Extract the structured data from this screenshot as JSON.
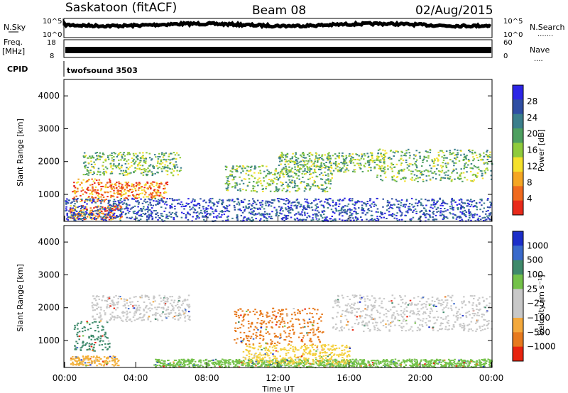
{
  "header": {
    "station": "Saskatoon (fitACF)",
    "beam": "Beam 08",
    "date": "02/Aug/2015"
  },
  "panels": {
    "nsky": {
      "left_label": "N.Sky",
      "left_ticks": [
        "10^5",
        "10^0"
      ],
      "right_ticks": [
        "10^5",
        "10^0"
      ],
      "right_label": "N.Search",
      "right_label_line": "......."
    },
    "freq": {
      "left_label": "Freq.",
      "left_unit": "[MHz]",
      "left_ticks": [
        "18",
        "8"
      ],
      "right_ticks": [
        "60",
        "0"
      ],
      "right_label": "Nave",
      "right_label_line": "...."
    },
    "cpid": {
      "label": "CPID",
      "program": "twofsound 3503"
    }
  },
  "colors": {
    "power_scale": [
      "#2c25e6",
      "#2f4ea3",
      "#3b7f8c",
      "#4ea060",
      "#8fcb3c",
      "#f5e12c",
      "#f5a623",
      "#f06a1e",
      "#e82a1a"
    ],
    "velocity_scale": [
      "#1c2ec9",
      "#3a6acb",
      "#3f8a6b",
      "#74c24a",
      "#c8c8c8",
      "#c8c8c8",
      "#f4a93c",
      "#e77a1e",
      "#e8240f"
    ]
  },
  "chart_data": [
    {
      "type": "heatmap",
      "name_key": "power",
      "ylabel": "Slant Range [km]",
      "yticks": [
        "4000",
        "3000",
        "2000",
        "1000"
      ],
      "ylim": [
        180,
        4500
      ],
      "xlim_hours": [
        0,
        24
      ],
      "colorbar_label": "Power [dB]",
      "colorbar_ticks": [
        "28",
        "24",
        "20",
        "16",
        "12",
        "8",
        "4"
      ],
      "colorbar_range": [
        0,
        32
      ],
      "echo_bands": [
        {
          "t0": 0.2,
          "t1": 3.2,
          "r0": 250,
          "r1": 700,
          "level": "high"
        },
        {
          "t0": 0.4,
          "t1": 2.6,
          "r0": 800,
          "r1": 1500,
          "level": "high"
        },
        {
          "t0": 2.5,
          "t1": 5.8,
          "r0": 900,
          "r1": 1400,
          "level": "high"
        },
        {
          "t0": 1.0,
          "t1": 6.5,
          "r0": 1600,
          "r1": 2300,
          "level": "mid"
        },
        {
          "t0": 9.0,
          "t1": 15.0,
          "r0": 1100,
          "r1": 1900,
          "level": "mid"
        },
        {
          "t0": 12.0,
          "t1": 18.0,
          "r0": 1700,
          "r1": 2300,
          "level": "mid"
        },
        {
          "t0": 17.5,
          "t1": 24.0,
          "r0": 1400,
          "r1": 2400,
          "level": "mid"
        },
        {
          "t0": 0.0,
          "t1": 24.0,
          "r0": 200,
          "r1": 900,
          "level": "low"
        }
      ]
    },
    {
      "type": "heatmap",
      "name_key": "velocity",
      "ylabel": "Slant Range [km]",
      "yticks": [
        "4000",
        "3000",
        "2000",
        "1000"
      ],
      "ylim": [
        180,
        4500
      ],
      "xlabel": "Time UT",
      "xticks": [
        "00:00",
        "04:00",
        "08:00",
        "12:00",
        "16:00",
        "20:00",
        "00:00"
      ],
      "xlim_hours": [
        0,
        24
      ],
      "colorbar_label": "Velocity [m s⁻¹]",
      "colorbar_ticks": [
        "1000",
        "500",
        "100",
        "25",
        "−25",
        "−100",
        "−500",
        "−1000"
      ],
      "echo_bands": [
        {
          "t0": 0.3,
          "t1": 3.0,
          "r0": 250,
          "r1": 550,
          "level": "orange-light"
        },
        {
          "t0": 0.5,
          "t1": 2.5,
          "r0": 700,
          "r1": 1600,
          "level": "green"
        },
        {
          "t0": 1.5,
          "t1": 7.0,
          "r0": 1600,
          "r1": 2400,
          "level": "grey"
        },
        {
          "t0": 5.0,
          "t1": 24.0,
          "r0": 200,
          "r1": 450,
          "level": "green-light"
        },
        {
          "t0": 9.5,
          "t1": 14.5,
          "r0": 900,
          "r1": 2000,
          "level": "orange"
        },
        {
          "t0": 15.0,
          "t1": 24.0,
          "r0": 1300,
          "r1": 2400,
          "level": "grey"
        },
        {
          "t0": 10.0,
          "t1": 16.0,
          "r0": 300,
          "r1": 900,
          "level": "yellow"
        }
      ]
    }
  ]
}
